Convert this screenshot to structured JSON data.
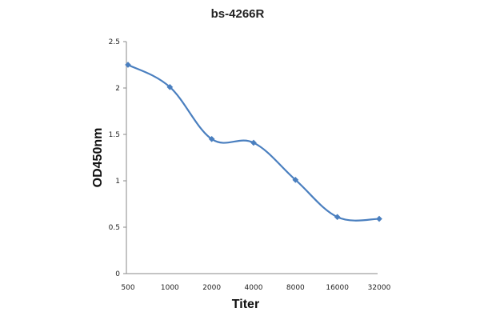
{
  "chart_data": {
    "type": "line",
    "title": "bs-4266R",
    "xlabel": "Titer",
    "ylabel": "OD450nm",
    "categories": [
      "500",
      "1000",
      "2000",
      "4000",
      "8000",
      "16000",
      "32000"
    ],
    "series": [
      {
        "name": "bs-4266R",
        "values": [
          2.25,
          2.01,
          1.45,
          1.41,
          1.01,
          0.61,
          0.59
        ]
      }
    ],
    "ylim": [
      0,
      2.5
    ],
    "yticks": [
      "0",
      "0.5",
      "1",
      "1.5",
      "2",
      "2.5"
    ],
    "grid": false,
    "line_color": "#4a7fbf",
    "marker_color": "#4a7fbf",
    "marker": "diamond"
  }
}
